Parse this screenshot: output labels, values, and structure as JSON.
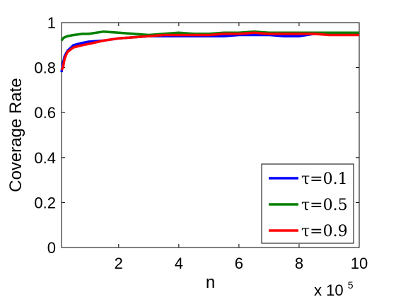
{
  "chart_data": {
    "type": "line",
    "xlabel": "n",
    "ylabel": "Coverage Rate",
    "x_multiplier": {
      "base": "x 10",
      "exponent": "5"
    },
    "xlim": [
      0.1,
      10
    ],
    "ylim": [
      0,
      1
    ],
    "xticks": [
      2,
      4,
      6,
      8,
      10
    ],
    "yticks": [
      0,
      0.2,
      0.4,
      0.6,
      0.8,
      1
    ],
    "ytick_labels": [
      "0",
      "0.2",
      "0.4",
      "0.6",
      "0.8",
      "1"
    ],
    "grid": false,
    "legend_position": "bottom-right",
    "series": [
      {
        "name": "τ=0.1",
        "color": "#0000ff",
        "x": [
          0.1,
          0.15,
          0.2,
          0.3,
          0.5,
          0.8,
          1.0,
          1.5,
          2.0,
          2.5,
          3.0,
          3.5,
          4.0,
          4.5,
          5.0,
          5.5,
          6.0,
          6.5,
          7.0,
          7.5,
          8.0,
          8.5,
          9.0,
          9.5,
          10.0
        ],
        "y": [
          0.78,
          0.82,
          0.85,
          0.875,
          0.9,
          0.91,
          0.915,
          0.92,
          0.93,
          0.935,
          0.94,
          0.94,
          0.94,
          0.94,
          0.94,
          0.94,
          0.945,
          0.945,
          0.945,
          0.94,
          0.94,
          0.95,
          0.95,
          0.95,
          0.95
        ]
      },
      {
        "name": "τ=0.5",
        "color": "#008000",
        "x": [
          0.1,
          0.15,
          0.2,
          0.3,
          0.5,
          0.8,
          1.0,
          1.5,
          2.0,
          2.5,
          3.0,
          3.5,
          4.0,
          4.5,
          5.0,
          5.5,
          6.0,
          6.5,
          7.0,
          7.5,
          8.0,
          8.5,
          9.0,
          9.5,
          10.0
        ],
        "y": [
          0.92,
          0.93,
          0.935,
          0.94,
          0.945,
          0.95,
          0.95,
          0.96,
          0.955,
          0.95,
          0.945,
          0.95,
          0.955,
          0.95,
          0.95,
          0.955,
          0.955,
          0.96,
          0.955,
          0.955,
          0.955,
          0.955,
          0.955,
          0.955,
          0.955
        ]
      },
      {
        "name": "τ=0.9",
        "color": "#ff0000",
        "x": [
          0.1,
          0.15,
          0.2,
          0.3,
          0.5,
          0.8,
          1.0,
          1.5,
          2.0,
          2.5,
          3.0,
          3.5,
          4.0,
          4.5,
          5.0,
          5.5,
          6.0,
          6.5,
          7.0,
          7.5,
          8.0,
          8.5,
          9.0,
          9.5,
          10.0
        ],
        "y": [
          0.79,
          0.8,
          0.84,
          0.87,
          0.89,
          0.9,
          0.905,
          0.92,
          0.93,
          0.935,
          0.94,
          0.945,
          0.945,
          0.945,
          0.945,
          0.95,
          0.95,
          0.955,
          0.95,
          0.95,
          0.95,
          0.95,
          0.945,
          0.945,
          0.945
        ]
      }
    ]
  }
}
